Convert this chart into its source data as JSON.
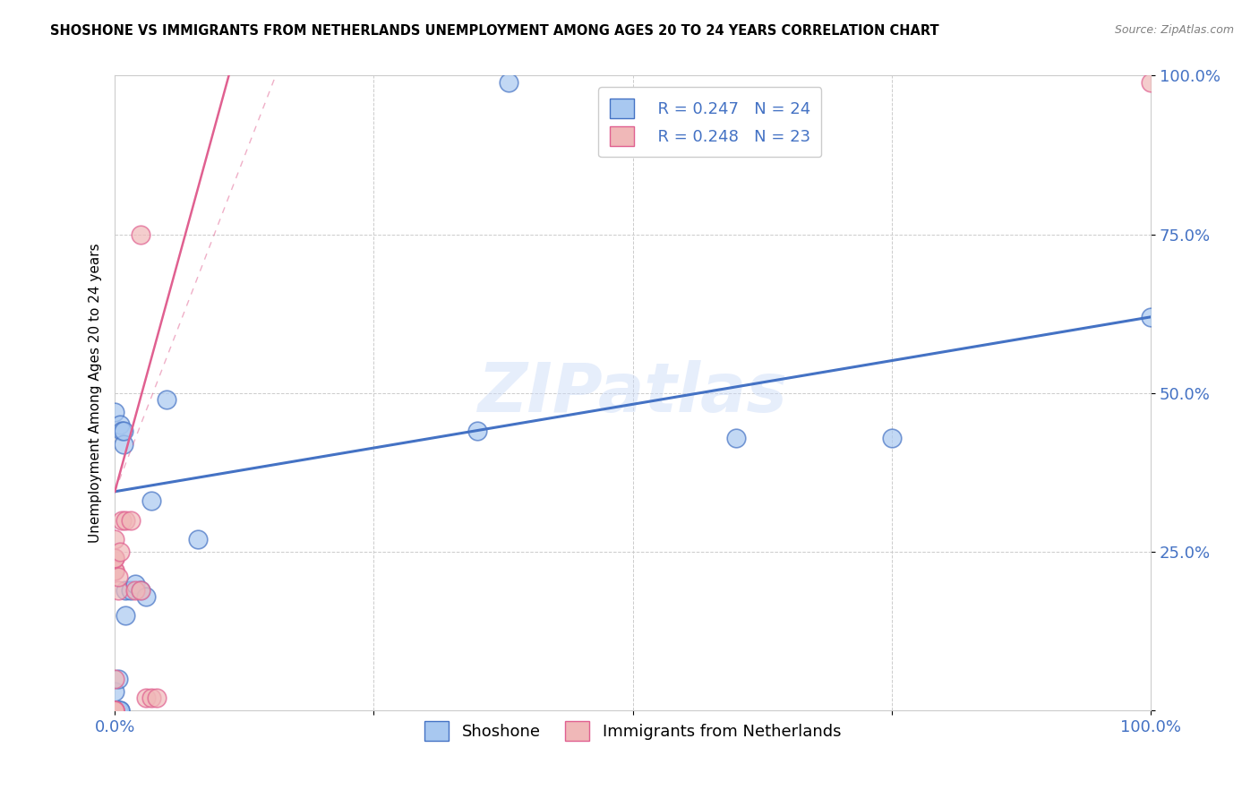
{
  "title": "SHOSHONE VS IMMIGRANTS FROM NETHERLANDS UNEMPLOYMENT AMONG AGES 20 TO 24 YEARS CORRELATION CHART",
  "source": "Source: ZipAtlas.com",
  "ylabel": "Unemployment Among Ages 20 to 24 years",
  "xlim": [
    0,
    1.0
  ],
  "ylim": [
    0,
    1.0
  ],
  "xticks": [
    0.0,
    0.25,
    0.5,
    0.75,
    1.0
  ],
  "xticklabels": [
    "0.0%",
    "",
    "",
    "",
    "100.0%"
  ],
  "yticks": [
    0.0,
    0.25,
    0.5,
    0.75,
    1.0
  ],
  "yticklabels": [
    "",
    "25.0%",
    "50.0%",
    "75.0%",
    "100.0%"
  ],
  "shoshone_color": "#a8c8f0",
  "netherlands_color": "#f0b8b8",
  "trend_blue": "#4472c4",
  "trend_pink": "#e06090",
  "watermark": "ZIPatlas",
  "legend_R_shoshone": "R = 0.247",
  "legend_N_shoshone": "N = 24",
  "legend_R_netherlands": "R = 0.248",
  "legend_N_netherlands": "N = 23",
  "legend_label_shoshone": "Shoshone",
  "legend_label_netherlands": "Immigrants from Netherlands",
  "shoshone_x": [
    0.0,
    0.0,
    0.003,
    0.003,
    0.005,
    0.005,
    0.005,
    0.007,
    0.008,
    0.008,
    0.01,
    0.01,
    0.015,
    0.02,
    0.025,
    0.03,
    0.035,
    0.05,
    0.08,
    0.35,
    0.6,
    0.75,
    0.38,
    1.0
  ],
  "shoshone_y": [
    0.03,
    0.47,
    0.0,
    0.05,
    0.0,
    0.0,
    0.45,
    0.44,
    0.42,
    0.44,
    0.15,
    0.19,
    0.19,
    0.2,
    0.19,
    0.18,
    0.33,
    0.49,
    0.27,
    0.44,
    0.43,
    0.43,
    0.99,
    0.62
  ],
  "netherlands_x": [
    0.0,
    0.0,
    0.0,
    0.0,
    0.0,
    0.0,
    0.0,
    0.0,
    0.0,
    0.0,
    0.003,
    0.003,
    0.005,
    0.007,
    0.01,
    0.015,
    0.02,
    0.025,
    0.025,
    0.03,
    0.035,
    0.04,
    1.0
  ],
  "netherlands_y": [
    0.0,
    0.0,
    0.0,
    0.0,
    0.05,
    0.22,
    0.22,
    0.24,
    0.24,
    0.27,
    0.19,
    0.21,
    0.25,
    0.3,
    0.3,
    0.3,
    0.19,
    0.19,
    0.75,
    0.02,
    0.02,
    0.02,
    0.99
  ],
  "blue_line_x": [
    0.0,
    1.0
  ],
  "blue_line_y": [
    0.345,
    0.62
  ],
  "pink_line_x": [
    0.0,
    0.11
  ],
  "pink_line_y": [
    0.345,
    1.0
  ]
}
